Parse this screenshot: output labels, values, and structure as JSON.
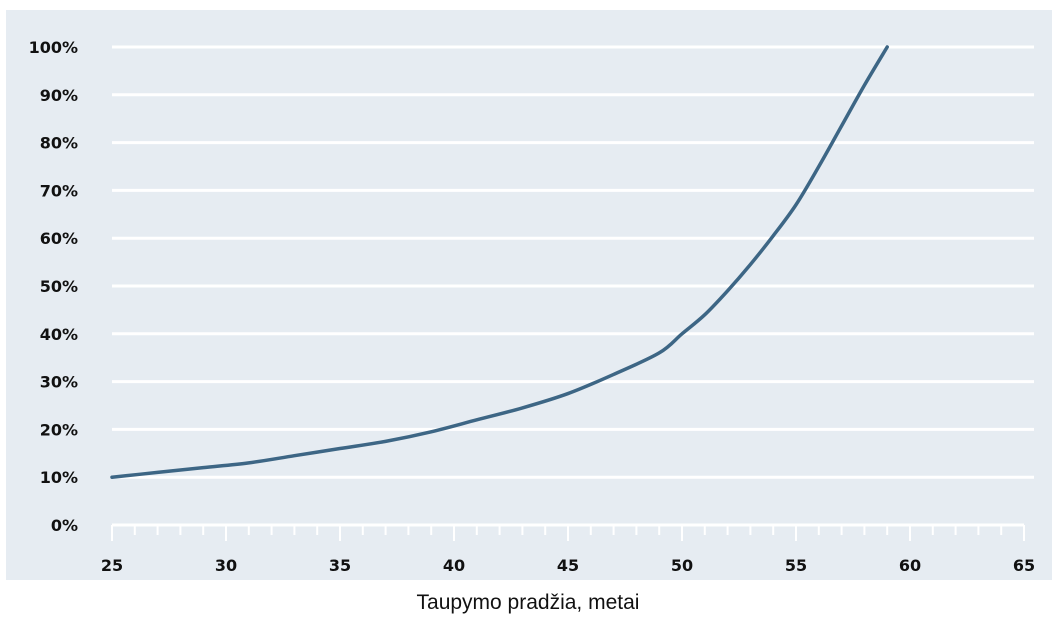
{
  "chart_data": {
    "type": "line",
    "x_ticks": [
      "25",
      "30",
      "35",
      "40",
      "45",
      "50",
      "55",
      "60",
      "65"
    ],
    "y_ticks": [
      "0%",
      "10%",
      "20%",
      "30%",
      "40%",
      "50%",
      "60%",
      "70%",
      "80%",
      "90%",
      "100%"
    ],
    "xlim": [
      25,
      65
    ],
    "ylim": [
      0,
      100
    ],
    "grid": true,
    "xlabel": "Taupymo pradžia, metai",
    "ylabel": "",
    "title": "",
    "series": [
      {
        "x": [
          25,
          27,
          29,
          31,
          33,
          35,
          37,
          39,
          41,
          43,
          45,
          47,
          49,
          50,
          51,
          52,
          53,
          54,
          55,
          56,
          57,
          58,
          59
        ],
        "y": [
          10,
          11,
          12,
          13,
          14.5,
          16,
          17.5,
          19.5,
          22,
          24.5,
          27.5,
          31.5,
          36,
          40,
          44,
          49,
          54.5,
          60.5,
          67,
          75,
          83.5,
          92,
          100
        ]
      }
    ]
  },
  "colors": {
    "background": "#e6ecf2",
    "grid": "#ffffff",
    "line": "#3d6685",
    "text": "#111111"
  }
}
